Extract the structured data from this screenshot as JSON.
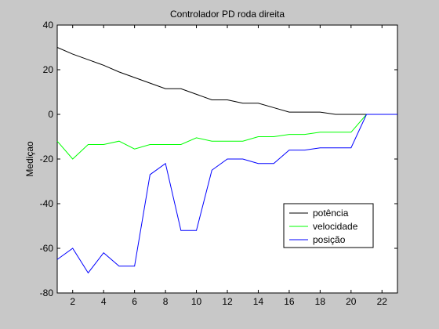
{
  "chart_data": {
    "type": "line",
    "title": "Controlador PD roda direita",
    "xlabel": "",
    "ylabel": "Mediçao",
    "xlim": [
      1,
      23
    ],
    "ylim": [
      -80,
      40
    ],
    "xticks": [
      2,
      4,
      6,
      8,
      10,
      12,
      14,
      16,
      18,
      20,
      22
    ],
    "yticks": [
      -80,
      -60,
      -40,
      -20,
      0,
      20,
      40
    ],
    "grid": false,
    "legend_position": "lower-right",
    "x": [
      1,
      2,
      3,
      4,
      5,
      6,
      7,
      8,
      9,
      10,
      11,
      12,
      13,
      14,
      15,
      16,
      17,
      18,
      19,
      20,
      21,
      22,
      23
    ],
    "series": [
      {
        "name": "potência",
        "color": "#000000",
        "values": [
          30,
          27,
          24.5,
          22,
          19,
          16.5,
          14,
          11.5,
          11.5,
          9,
          6.5,
          6.5,
          5,
          5,
          3,
          1,
          1,
          1,
          0,
          0,
          0,
          0,
          0
        ]
      },
      {
        "name": "velocidade",
        "color": "#00ff00",
        "values": [
          -12,
          -20,
          -13.5,
          -13.5,
          -12,
          -15.5,
          -13.5,
          -13.5,
          -13.5,
          -10.5,
          -12,
          -12,
          -12,
          -10,
          -10,
          -9,
          -9,
          -8,
          -8,
          -8,
          0,
          0,
          0
        ]
      },
      {
        "name": "posição",
        "color": "#0000ff",
        "values": [
          -65,
          -60,
          -71,
          -62,
          -68,
          -68,
          -27,
          -22,
          -52,
          -52,
          -25,
          -20,
          -20,
          -22,
          -22,
          -16,
          -16,
          -15,
          -15,
          -15,
          0,
          0,
          0
        ]
      }
    ]
  }
}
